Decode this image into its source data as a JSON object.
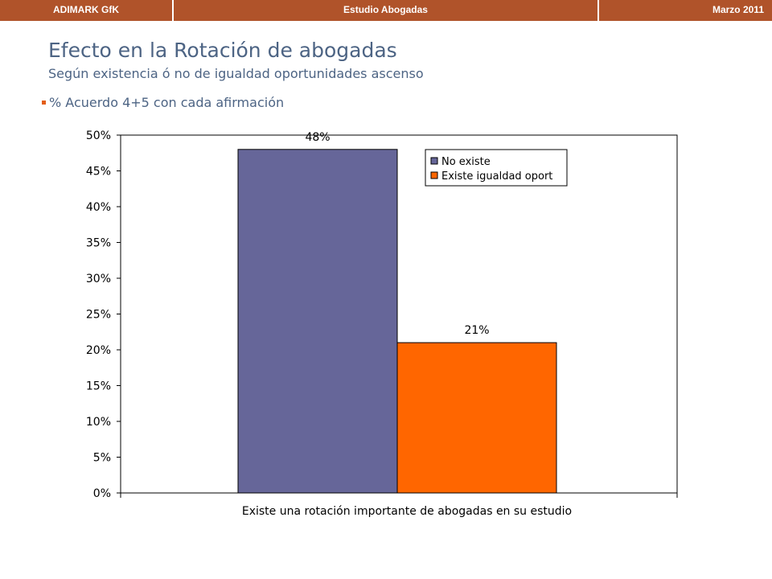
{
  "header": {
    "left_label": "ADIMARK GfK",
    "center_label": "Estudio Abogadas",
    "right_label": "Marzo 2011"
  },
  "page": {
    "title": "Efecto en la Rotación de abogadas",
    "subtitle": "Según existencia ó no de igualdad oportunidades ascenso",
    "bullet": "% Acuerdo 4+5 con cada afirmación"
  },
  "colors": {
    "header_bar": "#b0532a",
    "title_text": "#4d6484",
    "bullet": "#e35d17",
    "series_no_existe": "#666699",
    "series_existe": "#ff6600"
  },
  "chart_data": {
    "type": "bar",
    "categories": [
      "Existe una rotación importante de abogadas en su estudio"
    ],
    "series": [
      {
        "name": "No existe",
        "values": [
          48
        ],
        "label": "48%",
        "color": "#666699"
      },
      {
        "name": "Existe igualdad oport",
        "values": [
          21
        ],
        "label": "21%",
        "color": "#ff6600"
      }
    ],
    "ylim": [
      0,
      50
    ],
    "yticks": [
      "0%",
      "5%",
      "10%",
      "15%",
      "20%",
      "25%",
      "30%",
      "35%",
      "40%",
      "45%",
      "50%"
    ],
    "xlabel": "",
    "ylabel": "",
    "grid": false,
    "legend": "top-right"
  }
}
